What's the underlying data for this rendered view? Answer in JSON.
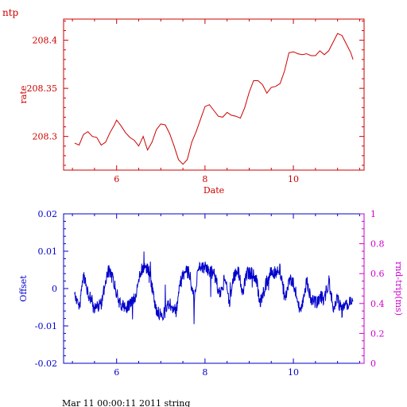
{
  "header": {
    "corner_label": "ntp"
  },
  "footer": {
    "caption": "Mar 11 00:00:11 2011 string"
  },
  "colors": {
    "rate": "#cc0000",
    "offset": "#0000cc",
    "rndtrip": "#cc00cc",
    "caption": "#000000"
  },
  "chart_data": [
    {
      "type": "line",
      "xlabel": "Date",
      "ylabel": "rate",
      "xlim": [
        4.8,
        11.6
      ],
      "ylim": [
        208.265,
        208.422
      ],
      "xticks": [
        6,
        8,
        10
      ],
      "xtick_labels": [
        "6",
        "8",
        "10"
      ],
      "yticks": [
        208.3,
        208.35,
        208.4
      ],
      "ytick_labels": [
        "208.3",
        "208.35",
        "208.4"
      ],
      "series": [
        {
          "x": [
            5.05,
            5.15,
            5.25,
            5.35,
            5.45,
            5.55,
            5.65,
            5.75,
            5.85,
            5.95,
            6.0,
            6.1,
            6.2,
            6.3,
            6.4,
            6.5,
            6.6,
            6.65,
            6.7,
            6.8,
            6.9,
            7.0,
            7.1,
            7.2,
            7.3,
            7.4,
            7.5,
            7.6,
            7.7,
            7.8,
            7.9,
            8.0,
            8.1,
            8.2,
            8.3,
            8.4,
            8.5,
            8.6,
            8.7,
            8.8,
            8.9,
            9.0,
            9.1,
            9.2,
            9.3,
            9.4,
            9.5,
            9.6,
            9.7,
            9.8,
            9.9,
            10.0,
            10.1,
            10.2,
            10.3,
            10.4,
            10.5,
            10.6,
            10.7,
            10.8,
            10.9,
            11.0,
            11.1,
            11.2,
            11.3,
            11.35
          ],
          "y": [
            208.293,
            208.291,
            208.302,
            208.305,
            208.3,
            208.299,
            208.291,
            208.294,
            208.304,
            208.312,
            208.317,
            208.311,
            208.304,
            208.299,
            208.296,
            208.29,
            208.3,
            208.293,
            208.286,
            208.294,
            208.307,
            208.313,
            208.312,
            208.303,
            208.29,
            208.276,
            208.271,
            208.276,
            208.294,
            208.305,
            208.318,
            208.331,
            208.333,
            208.327,
            208.321,
            208.32,
            208.325,
            208.322,
            208.321,
            208.319,
            208.33,
            208.346,
            208.358,
            208.358,
            208.354,
            208.345,
            208.351,
            208.352,
            208.355,
            208.368,
            208.387,
            208.388,
            208.386,
            208.385,
            208.386,
            208.384,
            208.384,
            208.389,
            208.385,
            208.389,
            208.398,
            208.407,
            208.405,
            208.396,
            208.387,
            208.38
          ]
        }
      ]
    },
    {
      "type": "line",
      "ylabel": "Offset",
      "ylabel_right": "rnd-trip(ms)",
      "xlim": [
        4.8,
        11.6
      ],
      "ylim": [
        -0.02,
        0.02
      ],
      "ylim_right": [
        0,
        1
      ],
      "xticks": [
        6,
        8,
        10
      ],
      "xtick_labels": [
        "6",
        "8",
        "10"
      ],
      "yticks": [
        -0.02,
        -0.01,
        0,
        0.01,
        0.02
      ],
      "ytick_labels": [
        "-0.02",
        "-0.01",
        "0",
        "0.01",
        "0.02"
      ],
      "yticks_right": [
        0,
        0.2,
        0.4,
        0.6,
        0.8,
        1
      ],
      "ytick_labels_right": [
        "0",
        "0.2",
        "0.4",
        "0.6",
        "0.8",
        "1"
      ],
      "noise_amplitude": 0.0018,
      "series": [
        {
          "x": [
            5.05,
            5.15,
            5.25,
            5.35,
            5.5,
            5.65,
            5.8,
            5.9,
            6.0,
            6.1,
            6.25,
            6.4,
            6.55,
            6.65,
            6.75,
            6.9,
            7.05,
            7.2,
            7.35,
            7.45,
            7.55,
            7.65,
            7.75,
            7.85,
            7.95,
            8.05,
            8.2,
            8.35,
            8.45,
            8.55,
            8.65,
            8.75,
            8.85,
            8.95,
            9.05,
            9.15,
            9.25,
            9.4,
            9.5,
            9.6,
            9.7,
            9.8,
            9.9,
            10.0,
            10.1,
            10.2,
            10.3,
            10.4,
            10.5,
            10.6,
            10.7,
            10.8,
            10.9,
            11.0,
            11.1,
            11.2,
            11.3,
            11.35
          ],
          "y": [
            -0.001,
            -0.006,
            0.004,
            -0.001,
            -0.005,
            -0.004,
            0.005,
            0.003,
            -0.001,
            -0.005,
            -0.005,
            -0.003,
            0.005,
            0.006,
            0.004,
            -0.006,
            -0.007,
            -0.004,
            -0.006,
            0.002,
            0.005,
            0.004,
            -0.003,
            0.005,
            0.006,
            0.005,
            0.004,
            -0.002,
            0.003,
            -0.004,
            0.003,
            0.005,
            -0.001,
            0.004,
            0.004,
            0.003,
            -0.004,
            0.002,
            0.005,
            0.004,
            0.005,
            -0.003,
            0.002,
            0.002,
            -0.004,
            -0.005,
            0.002,
            -0.003,
            -0.004,
            -0.002,
            -0.003,
            0.002,
            -0.005,
            -0.003,
            -0.006,
            -0.004,
            -0.004,
            -0.004
          ]
        }
      ]
    }
  ]
}
